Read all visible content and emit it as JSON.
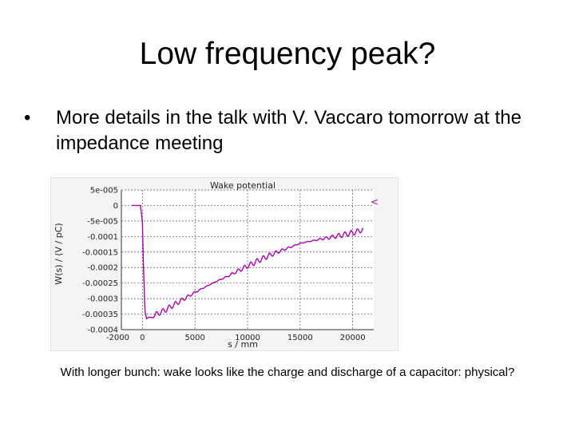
{
  "slide": {
    "title": "Low frequency peak?",
    "bullet_symbol": "•",
    "bullet_text": "More details in the talk with V. Vaccaro tomorrow at the impedance meeting",
    "caption": "With longer bunch: wake looks like the charge and discharge of a capacitor: physical?"
  },
  "colors": {
    "series": "#b000b0",
    "grid": "#555555"
  },
  "chart_data": {
    "type": "line",
    "title": "Wake potential",
    "xlabel": "s / mm",
    "ylabel": "W(s) / (V / pC)",
    "xlim": [
      -2000,
      22000
    ],
    "ylim": [
      -0.0004,
      5e-05
    ],
    "x_ticks": [
      -2000,
      0,
      5000,
      10000,
      15000,
      20000
    ],
    "x_tick_labels": [
      "-2000",
      "0",
      "5000",
      "10000",
      "15000",
      "20000"
    ],
    "y_ticks": [
      5e-05,
      0,
      -5e-05,
      -0.0001,
      -0.00015,
      -0.0002,
      -0.00025,
      -0.0003,
      -0.00035,
      -0.0004
    ],
    "y_tick_labels": [
      "5e-005",
      "0",
      "-5e-005",
      "-0.0001",
      "-0.00015",
      "-0.0002",
      "-0.00025",
      "-0.0003",
      "-0.00035",
      "-0.0004"
    ],
    "grid": true,
    "legend_marker": "<",
    "series": [
      {
        "x": [
          -1000,
          -200,
          0,
          100,
          250,
          400,
          600,
          1000,
          2000,
          3000,
          4000,
          5000,
          6000,
          7000,
          8000,
          9000,
          10000,
          11000,
          12000,
          13000,
          14000,
          15000,
          16000,
          17000,
          18000,
          19000,
          20000,
          21000
        ],
        "y": [
          0,
          0,
          -5e-05,
          -0.0002,
          -0.00034,
          -0.000365,
          -0.00036,
          -0.000355,
          -0.00034,
          -0.00032,
          -0.0003,
          -0.00028,
          -0.000262,
          -0.000245,
          -0.00023,
          -0.000212,
          -0.000195,
          -0.000178,
          -0.000162,
          -0.000148,
          -0.000135,
          -0.000122,
          -0.000115,
          -0.000108,
          -0.000102,
          -9.5e-05,
          -8.8e-05,
          -7.8e-05
        ]
      }
    ]
  }
}
